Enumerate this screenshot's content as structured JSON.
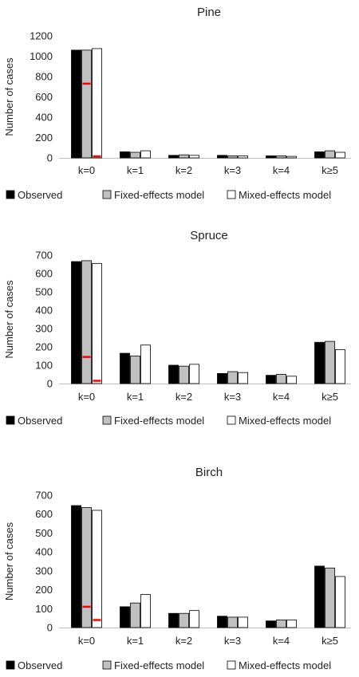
{
  "colors": {
    "observed": "#000000",
    "fixed": "#c0c0c0",
    "mixed": "#ffffff",
    "bar_stroke": "#000000",
    "marker": "#ff0000",
    "axis": "#bfbfbf"
  },
  "legend": {
    "observed": "Observed",
    "fixed": "Fixed-effects model",
    "mixed": "Mixed-effects model"
  },
  "chart_data": [
    {
      "type": "bar",
      "title": "Pine",
      "ylabel": "Number of cases",
      "xlabel": "",
      "categories": [
        "k=0",
        "k=1",
        "k=2",
        "k=3",
        "k=4",
        "k≥5"
      ],
      "ylim": [
        0,
        1200
      ],
      "yticks": [
        0,
        200,
        400,
        600,
        800,
        1000,
        1200
      ],
      "series": [
        {
          "name": "Observed",
          "values": [
            1060,
            60,
            25,
            25,
            20,
            60
          ]
        },
        {
          "name": "Fixed-effects model",
          "values": [
            1060,
            55,
            30,
            20,
            20,
            70
          ]
        },
        {
          "name": "Mixed-effects model",
          "values": [
            1075,
            70,
            25,
            20,
            15,
            55
          ]
        }
      ],
      "markers": [
        {
          "series": 1,
          "category": 0,
          "value": 730
        },
        {
          "series": 2,
          "category": 0,
          "value": 15
        }
      ],
      "legend_position": "bottom"
    },
    {
      "type": "bar",
      "title": "Spruce",
      "ylabel": "Number of cases",
      "xlabel": "",
      "categories": [
        "k=0",
        "k=1",
        "k=2",
        "k=3",
        "k=4",
        "k≥5"
      ],
      "ylim": [
        0,
        700
      ],
      "yticks": [
        0,
        100,
        200,
        300,
        400,
        500,
        600,
        700
      ],
      "series": [
        {
          "name": "Observed",
          "values": [
            665,
            165,
            100,
            55,
            45,
            225
          ]
        },
        {
          "name": "Fixed-effects model",
          "values": [
            670,
            150,
            95,
            65,
            50,
            230
          ]
        },
        {
          "name": "Mixed-effects model",
          "values": [
            655,
            210,
            105,
            60,
            40,
            185
          ]
        }
      ],
      "markers": [
        {
          "series": 1,
          "category": 0,
          "value": 145
        },
        {
          "series": 2,
          "category": 0,
          "value": 15
        }
      ],
      "legend_position": "bottom"
    },
    {
      "type": "bar",
      "title": "Birch",
      "ylabel": "Number of cases",
      "xlabel": "",
      "categories": [
        "k=0",
        "k=1",
        "k=2",
        "k=3",
        "k=4",
        "k≥5"
      ],
      "ylim": [
        0,
        700
      ],
      "yticks": [
        0,
        100,
        200,
        300,
        400,
        500,
        600,
        700
      ],
      "series": [
        {
          "name": "Observed",
          "values": [
            645,
            110,
            75,
            60,
            35,
            325
          ]
        },
        {
          "name": "Fixed-effects model",
          "values": [
            635,
            130,
            75,
            55,
            40,
            315
          ]
        },
        {
          "name": "Mixed-effects model",
          "values": [
            620,
            175,
            90,
            55,
            40,
            270
          ]
        }
      ],
      "markers": [
        {
          "series": 1,
          "category": 0,
          "value": 110
        },
        {
          "series": 2,
          "category": 0,
          "value": 40
        }
      ],
      "legend_position": "bottom"
    }
  ]
}
